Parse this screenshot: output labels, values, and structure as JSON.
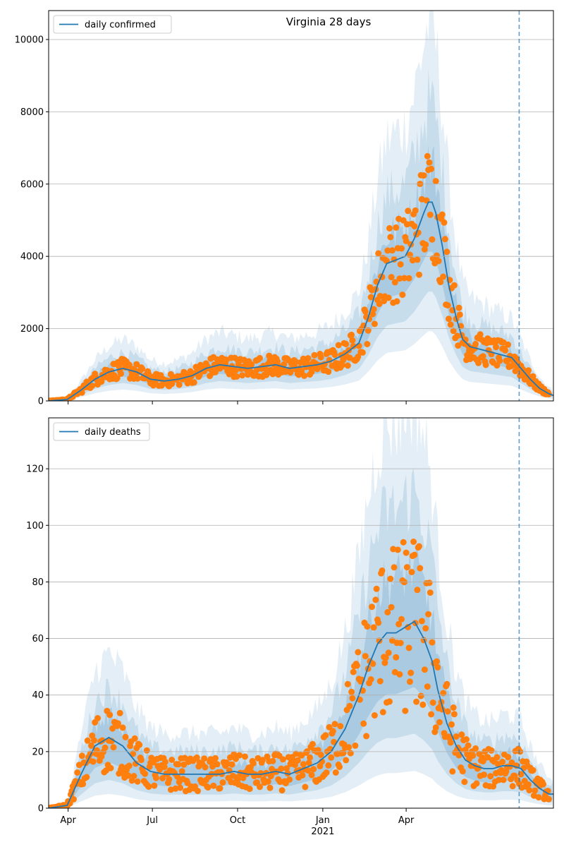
{
  "chart_data": [
    {
      "type": "line",
      "title": "Virginia 28 days",
      "xlabel": "",
      "ylabel": "",
      "x_ticks": [
        "Apr",
        "Jul",
        "Oct",
        "Jan",
        "Apr"
      ],
      "x_tick_sublabel": "",
      "ylim": [
        0,
        10800
      ],
      "y_ticks": [
        "0",
        "2000",
        "4000",
        "6000",
        "8000",
        "10000"
      ],
      "grid": "horizontal",
      "legend": {
        "placement": "upper-left",
        "entries": [
          "daily confirmed"
        ]
      },
      "colors": {
        "line": "#1f77b4",
        "points": "#ff7f0e",
        "band": "#1f77b4",
        "marker_line": "#1f77b4"
      },
      "x_range_days": [
        0,
        445
      ],
      "forecast_start_day": 417,
      "series": [
        {
          "name": "daily confirmed",
          "kind": "median-line",
          "points": [
            [
              0,
              0
            ],
            [
              20,
              40
            ],
            [
              35,
              300
            ],
            [
              50,
              600
            ],
            [
              65,
              800
            ],
            [
              80,
              900
            ],
            [
              95,
              800
            ],
            [
              110,
              600
            ],
            [
              125,
              550
            ],
            [
              140,
              600
            ],
            [
              155,
              700
            ],
            [
              170,
              900
            ],
            [
              185,
              1000
            ],
            [
              200,
              950
            ],
            [
              215,
              900
            ],
            [
              230,
              950
            ],
            [
              245,
              1000
            ],
            [
              260,
              900
            ],
            [
              275,
              950
            ],
            [
              290,
              1000
            ],
            [
              305,
              1100
            ],
            [
              320,
              1300
            ],
            [
              335,
              1600
            ],
            [
              345,
              2300
            ],
            [
              355,
              3200
            ],
            [
              365,
              3800
            ],
            [
              375,
              3900
            ],
            [
              385,
              4000
            ],
            [
              395,
              4500
            ],
            [
              405,
              5200
            ],
            [
              410,
              5500
            ],
            [
              414,
              5500
            ]
          ]
        },
        {
          "name": "",
          "kind": "median-line-forecast",
          "points": [
            [
              414,
              5500
            ],
            [
              418,
              5200
            ],
            [
              425,
              4300
            ],
            [
              432,
              3200
            ],
            [
              440,
              2300
            ],
            [
              447,
              1700
            ],
            [
              455,
              1500
            ],
            [
              470,
              1400
            ],
            [
              485,
              1300
            ],
            [
              500,
              1200
            ],
            [
              510,
              900
            ],
            [
              520,
              600
            ],
            [
              530,
              350
            ],
            [
              540,
              200
            ],
            [
              545,
              150
            ]
          ]
        }
      ]
    },
    {
      "type": "line",
      "title": "",
      "xlabel": "",
      "ylabel": "",
      "x_ticks": [
        "Apr",
        "Jul",
        "Oct",
        "Jan",
        "Apr"
      ],
      "x_tick_sublabel": "2021",
      "ylim": [
        0,
        138
      ],
      "y_ticks": [
        "0",
        "20",
        "40",
        "60",
        "80",
        "100",
        "120"
      ],
      "grid": "horizontal",
      "legend": {
        "placement": "upper-left",
        "entries": [
          "daily deaths"
        ]
      },
      "series": [
        {
          "name": "daily deaths",
          "kind": "median-line",
          "points": [
            [
              0,
              0
            ],
            [
              20,
              1
            ],
            [
              35,
              12
            ],
            [
              50,
              22
            ],
            [
              65,
              25
            ],
            [
              80,
              22
            ],
            [
              95,
              16
            ],
            [
              110,
              13
            ],
            [
              125,
              12
            ],
            [
              140,
              12
            ],
            [
              155,
              12
            ],
            [
              170,
              12
            ],
            [
              185,
              12
            ],
            [
              200,
              13
            ],
            [
              215,
              12
            ],
            [
              230,
              12
            ],
            [
              245,
              13
            ],
            [
              260,
              12
            ],
            [
              275,
              14
            ],
            [
              290,
              16
            ],
            [
              305,
              20
            ],
            [
              320,
              28
            ],
            [
              335,
              40
            ],
            [
              345,
              50
            ],
            [
              355,
              58
            ],
            [
              365,
              62
            ],
            [
              375,
              62
            ],
            [
              385,
              64
            ],
            [
              395,
              66
            ],
            [
              405,
              60
            ],
            [
              414,
              52
            ],
            [
              420,
              42
            ],
            [
              430,
              30
            ],
            [
              440,
              22
            ],
            [
              450,
              17
            ],
            [
              460,
              15
            ],
            [
              470,
              14
            ],
            [
              480,
              14
            ],
            [
              490,
              15
            ],
            [
              500,
              15
            ],
            [
              510,
              14
            ],
            [
              520,
              10
            ],
            [
              530,
              7
            ],
            [
              540,
              5
            ],
            [
              545,
              5
            ]
          ]
        }
      ]
    }
  ]
}
